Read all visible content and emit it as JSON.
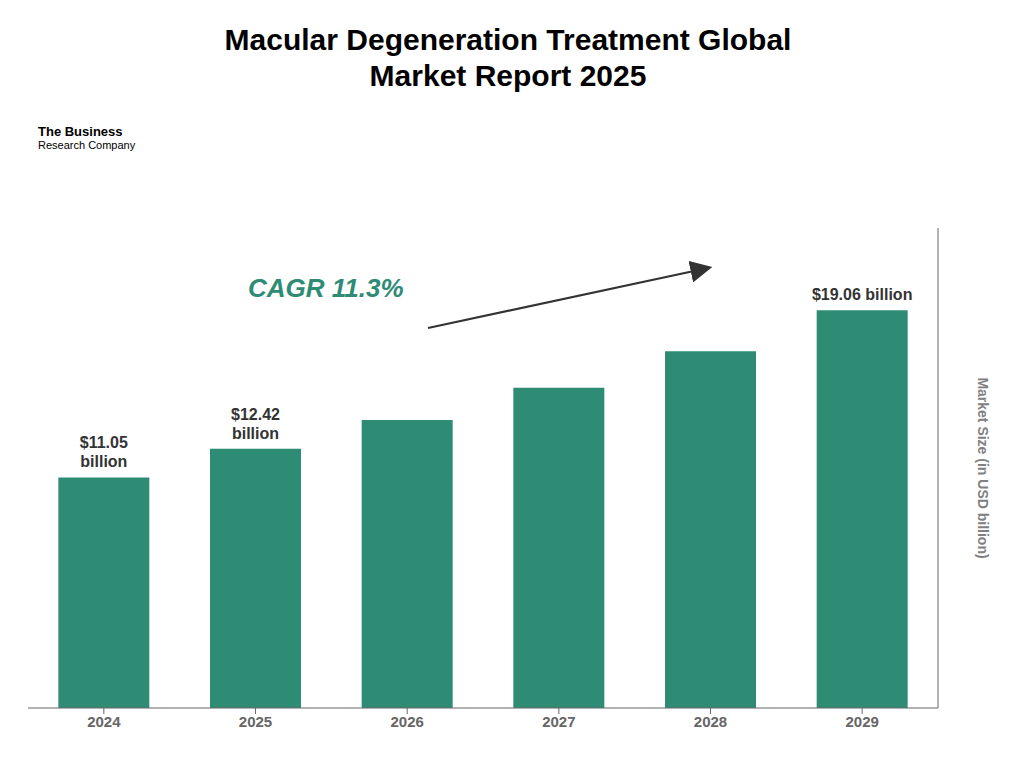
{
  "chart_data": {
    "type": "bar",
    "title": "Macular Degeneration Treatment Global\nMarket Report 2025",
    "categories": [
      "2024",
      "2025",
      "2026",
      "2027",
      "2028",
      "2029"
    ],
    "values": [
      11.05,
      12.42,
      13.8,
      15.35,
      17.1,
      19.06
    ],
    "value_labels": [
      "$11.05\nbillion",
      "$12.42\nbillion",
      null,
      null,
      null,
      "$19.06 billion"
    ],
    "color": "#2e8b74",
    "ylabel": "Market Size (in USD billion)",
    "ylim": [
      0,
      23
    ],
    "tick_labels": "x",
    "grid": false,
    "annotations": [
      "CAGR 11.3%",
      "The Business",
      "Research Company"
    ]
  }
}
